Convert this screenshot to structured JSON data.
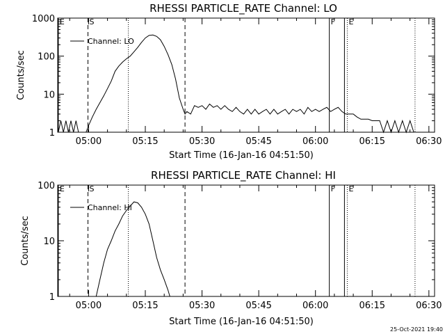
{
  "footer": {
    "timestamp": "25-Oct-2021 19:40"
  },
  "chart_data": [
    {
      "type": "line",
      "title": "RHESSI PARTICLE_RATE Channel: LO",
      "xlabel": "Start Time (16-Jan-16 04:51:50)",
      "ylabel": "Counts/sec",
      "y_scale": "log",
      "xlim": [
        "04:51:50",
        "06:31:30"
      ],
      "ylim": [
        1,
        1000
      ],
      "x_ticks": [
        "05:00",
        "05:15",
        "05:30",
        "05:45",
        "06:00",
        "06:15",
        "06:30"
      ],
      "y_ticks": [
        "1",
        "10",
        "100",
        "1000"
      ],
      "legend": {
        "label": "Channel: LO",
        "placement": "top-left"
      },
      "markers": [
        {
          "label": "E",
          "time": "04:52:00",
          "style": "solid"
        },
        {
          "label": "S",
          "time": "04:59:50",
          "style": "dashed"
        },
        {
          "label": "",
          "time": "05:10:30",
          "style": "dotted"
        },
        {
          "label": "",
          "time": "05:25:30",
          "style": "dashed"
        },
        {
          "label": "F",
          "time": "06:03:40",
          "style": "solid"
        },
        {
          "label": "",
          "time": "06:07:40",
          "style": "solid"
        },
        {
          "label": "E",
          "time": "06:08:25",
          "style": "dotted"
        },
        {
          "label": "",
          "time": "06:26:20",
          "style": "dotted"
        }
      ],
      "series": [
        {
          "name": "Channel: LO",
          "x": [
            "04:52:00",
            "04:52:40",
            "04:53:20",
            "04:54:00",
            "04:54:40",
            "04:55:20",
            "04:56:00",
            "04:56:40",
            "04:57:20",
            "04:58:00",
            "04:58:40",
            "04:59:20",
            "05:00:00",
            "05:01:00",
            "05:02:00",
            "05:03:00",
            "05:04:00",
            "05:05:00",
            "05:06:00",
            "05:07:00",
            "05:08:00",
            "05:09:00",
            "05:10:00",
            "05:11:00",
            "05:12:00",
            "05:13:00",
            "05:14:00",
            "05:15:00",
            "05:16:00",
            "05:17:00",
            "05:18:00",
            "05:19:00",
            "05:20:00",
            "05:21:00",
            "05:22:00",
            "05:23:00",
            "05:24:00",
            "05:25:00",
            "05:25:30",
            "05:26:00",
            "05:27:00",
            "05:28:00",
            "05:29:00",
            "05:30:00",
            "05:31:00",
            "05:32:00",
            "05:33:00",
            "05:34:00",
            "05:35:00",
            "05:36:00",
            "05:37:00",
            "05:38:00",
            "05:39:00",
            "05:40:00",
            "05:41:00",
            "05:42:00",
            "05:43:00",
            "05:44:00",
            "05:45:00",
            "05:46:00",
            "05:47:00",
            "05:48:00",
            "05:49:00",
            "05:50:00",
            "05:51:00",
            "05:52:00",
            "05:53:00",
            "05:54:00",
            "05:55:00",
            "05:56:00",
            "05:57:00",
            "05:58:00",
            "05:59:00",
            "06:00:00",
            "06:01:00",
            "06:02:00",
            "06:03:00",
            "06:04:00",
            "06:05:00",
            "06:06:00",
            "06:07:00",
            "06:08:00",
            "06:09:00",
            "06:10:00",
            "06:11:00",
            "06:12:00",
            "06:13:00",
            "06:14:00",
            "06:15:00",
            "06:16:00",
            "06:17:00",
            "06:18:00",
            "06:19:00",
            "06:20:00",
            "06:21:00",
            "06:22:00",
            "06:23:00",
            "06:24:00",
            "06:25:00",
            "06:26:00",
            "06:27:00"
          ],
          "y": [
            1,
            2,
            1,
            2,
            1,
            2,
            1,
            2,
            1,
            1,
            1,
            1,
            1.5,
            2.5,
            4,
            6,
            9,
            14,
            22,
            40,
            55,
            70,
            85,
            100,
            130,
            170,
            230,
            300,
            350,
            360,
            330,
            270,
            180,
            110,
            60,
            25,
            8,
            4,
            3,
            3.5,
            3,
            5,
            4.5,
            5,
            4,
            5.5,
            4.5,
            5,
            4,
            5,
            4,
            3.5,
            4.5,
            3.5,
            3,
            4,
            3,
            4,
            3,
            3.5,
            4,
            3,
            4,
            3,
            3.5,
            4,
            3,
            4,
            3.5,
            4,
            3,
            4.5,
            3.5,
            4,
            3.5,
            4,
            4.5,
            3.5,
            4,
            4.5,
            3.5,
            3,
            3,
            3,
            2.5,
            2.2,
            2.2,
            2.2,
            2,
            2,
            2,
            1,
            2,
            1,
            2,
            1,
            2,
            1,
            2,
            1,
            1
          ]
        }
      ]
    },
    {
      "type": "line",
      "title": "RHESSI PARTICLE_RATE Channel: HI",
      "xlabel": "Start Time (16-Jan-16 04:51:50)",
      "ylabel": "Counts/sec",
      "y_scale": "log",
      "xlim": [
        "04:51:50",
        "06:31:30"
      ],
      "ylim": [
        1,
        100
      ],
      "x_ticks": [
        "05:00",
        "05:15",
        "05:30",
        "05:45",
        "06:00",
        "06:15",
        "06:30"
      ],
      "y_ticks": [
        "1",
        "10",
        "100"
      ],
      "legend": {
        "label": "Channel: HI",
        "placement": "top-left"
      },
      "markers": [
        {
          "label": "E",
          "time": "04:52:00",
          "style": "solid"
        },
        {
          "label": "S",
          "time": "04:59:50",
          "style": "dashed"
        },
        {
          "label": "",
          "time": "05:10:30",
          "style": "dotted"
        },
        {
          "label": "",
          "time": "05:25:30",
          "style": "dashed"
        },
        {
          "label": "F",
          "time": "06:03:40",
          "style": "solid"
        },
        {
          "label": "",
          "time": "06:07:40",
          "style": "solid"
        },
        {
          "label": "E",
          "time": "06:08:25",
          "style": "dotted"
        },
        {
          "label": "",
          "time": "06:26:20",
          "style": "dotted"
        }
      ],
      "series": [
        {
          "name": "Channel: HI",
          "x": [
            "05:02:00",
            "05:03:00",
            "05:04:00",
            "05:05:00",
            "05:06:00",
            "05:07:00",
            "05:08:00",
            "05:09:00",
            "05:10:00",
            "05:11:00",
            "05:12:00",
            "05:13:00",
            "05:14:00",
            "05:15:00",
            "05:16:00",
            "05:17:00",
            "05:18:00",
            "05:19:00",
            "05:20:00",
            "05:21:00",
            "05:21:30"
          ],
          "y": [
            1,
            2,
            4,
            7,
            10,
            15,
            20,
            28,
            35,
            42,
            50,
            48,
            40,
            30,
            20,
            10,
            5,
            3,
            2,
            1.3,
            1
          ]
        }
      ]
    }
  ]
}
